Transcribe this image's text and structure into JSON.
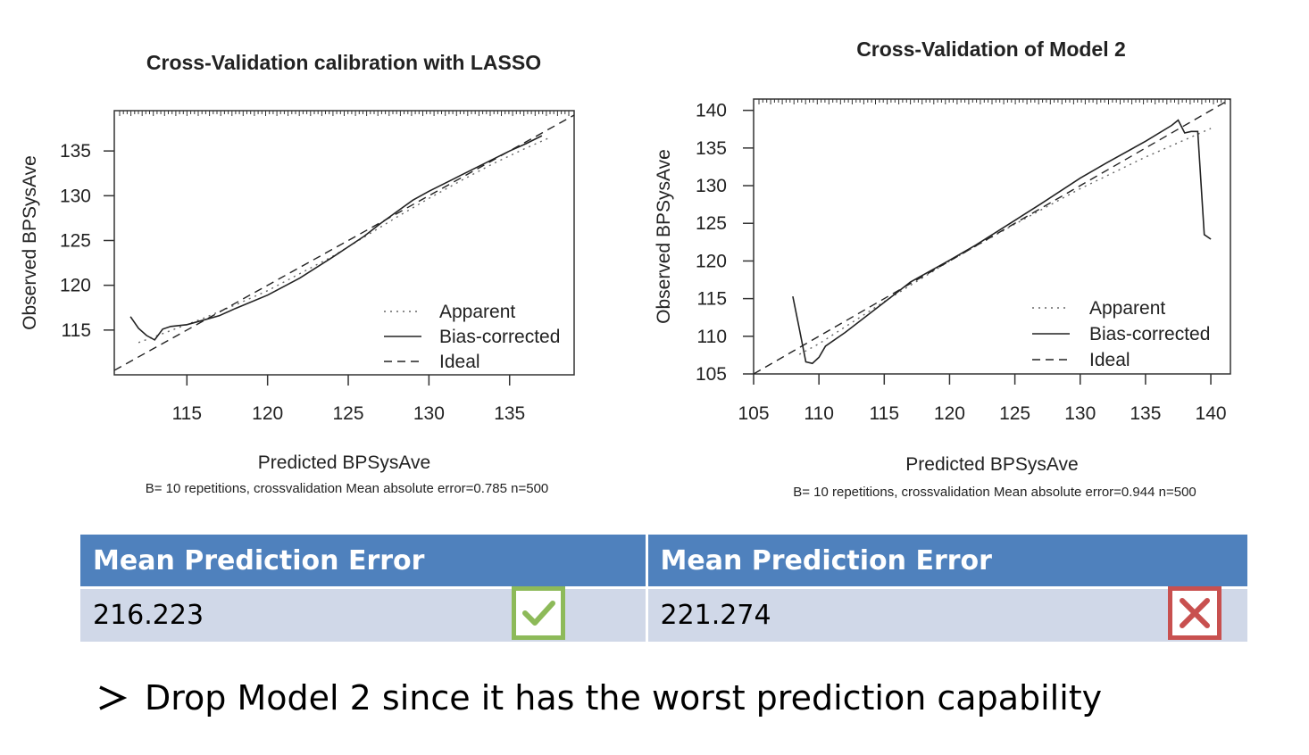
{
  "chart_data": [
    {
      "type": "line",
      "title": "Cross-Validation calibration with LASSO",
      "xlabel": "Predicted BPSysAve",
      "ylabel": "Observed BPSysAve",
      "subtitle": "B= 10 repetitions, crossvalidation Mean absolute error=0.785 n=500",
      "xlim": [
        110.5,
        139
      ],
      "ylim": [
        110,
        139.5
      ],
      "xticks": [
        115,
        120,
        125,
        130,
        135
      ],
      "yticks": [
        115,
        120,
        125,
        130,
        135
      ],
      "legend": "bottom-right",
      "grid": false,
      "series": [
        {
          "name": "Apparent",
          "style": "dotted",
          "x": [
            112,
            113.5,
            116,
            118,
            120,
            122,
            124,
            126,
            128,
            130,
            132,
            134,
            136,
            137.5
          ],
          "y": [
            113.6,
            114.6,
            116.3,
            117.8,
            119.4,
            121.3,
            123.2,
            125.4,
            127.6,
            129.7,
            131.7,
            133.6,
            135.3,
            136.5
          ]
        },
        {
          "name": "Bias-corrected",
          "style": "solid",
          "x": [
            111.5,
            112,
            112.5,
            113,
            113.5,
            114,
            115,
            116,
            117,
            118,
            120,
            122,
            124,
            126,
            127,
            128,
            129,
            130,
            131,
            132,
            133,
            134,
            135,
            136,
            137
          ],
          "y": [
            116.5,
            115.2,
            114.4,
            113.9,
            115.1,
            115.4,
            115.6,
            116.1,
            116.6,
            117.4,
            118.9,
            120.8,
            123.1,
            125.5,
            126.9,
            128.2,
            129.5,
            130.5,
            131.4,
            132.3,
            133.2,
            134.1,
            135,
            135.8,
            136.7
          ]
        },
        {
          "name": "Ideal",
          "style": "dashed",
          "x": [
            110.5,
            139
          ],
          "y": [
            110.5,
            139
          ]
        }
      ]
    },
    {
      "type": "line",
      "title": "Cross-Validation of Model 2",
      "xlabel": "Predicted BPSysAve",
      "ylabel": "Observed BPSysAve",
      "subtitle": "B= 10 repetitions, crossvalidation Mean absolute error=0.944 n=500",
      "xlim": [
        105,
        141.5
      ],
      "ylim": [
        105,
        141.5
      ],
      "xticks": [
        105,
        110,
        115,
        120,
        125,
        130,
        135,
        140
      ],
      "yticks": [
        105,
        110,
        115,
        120,
        125,
        130,
        135,
        140
      ],
      "legend": "bottom-right",
      "grid": false,
      "series": [
        {
          "name": "Apparent",
          "style": "dotted",
          "x": [
            108.5,
            110,
            115,
            120,
            125,
            130,
            135,
            140
          ],
          "y": [
            107.6,
            109,
            114.6,
            120,
            124.9,
            129.6,
            133.8,
            137.6
          ]
        },
        {
          "name": "Bias-corrected",
          "style": "solid",
          "x": [
            108,
            108.5,
            109,
            109.5,
            110,
            110.5,
            112,
            115,
            117,
            120,
            122,
            125,
            127,
            130,
            132,
            135,
            137,
            137.5,
            138,
            138.5,
            139,
            139.5,
            140
          ],
          "y": [
            115.3,
            111,
            106.6,
            106.4,
            107.2,
            108.7,
            110.5,
            114.5,
            117.2,
            120.1,
            122.1,
            125.4,
            127.6,
            131,
            133,
            135.9,
            138,
            138.7,
            137,
            137.2,
            137.2,
            123.5,
            122.9
          ]
        },
        {
          "name": "Ideal",
          "style": "dashed",
          "x": [
            105,
            141.5
          ],
          "y": [
            105,
            141.5
          ]
        }
      ]
    }
  ],
  "table": {
    "headers": [
      "Mean Prediction Error",
      "Mean Prediction Error"
    ],
    "values": [
      "216.223",
      "221.274"
    ]
  },
  "marks": {
    "left": "checkmark-icon",
    "right": "cross-icon",
    "good_color": "#8dba59",
    "bad_color": "#c8504f"
  },
  "conclusion": {
    "bullet_icon": "arrow-bullet-icon",
    "text": "Drop Model 2 since it has the worst prediction capability"
  },
  "colors": {
    "header_bg": "#4f81bd",
    "row_bg": "#d0d8e8"
  }
}
